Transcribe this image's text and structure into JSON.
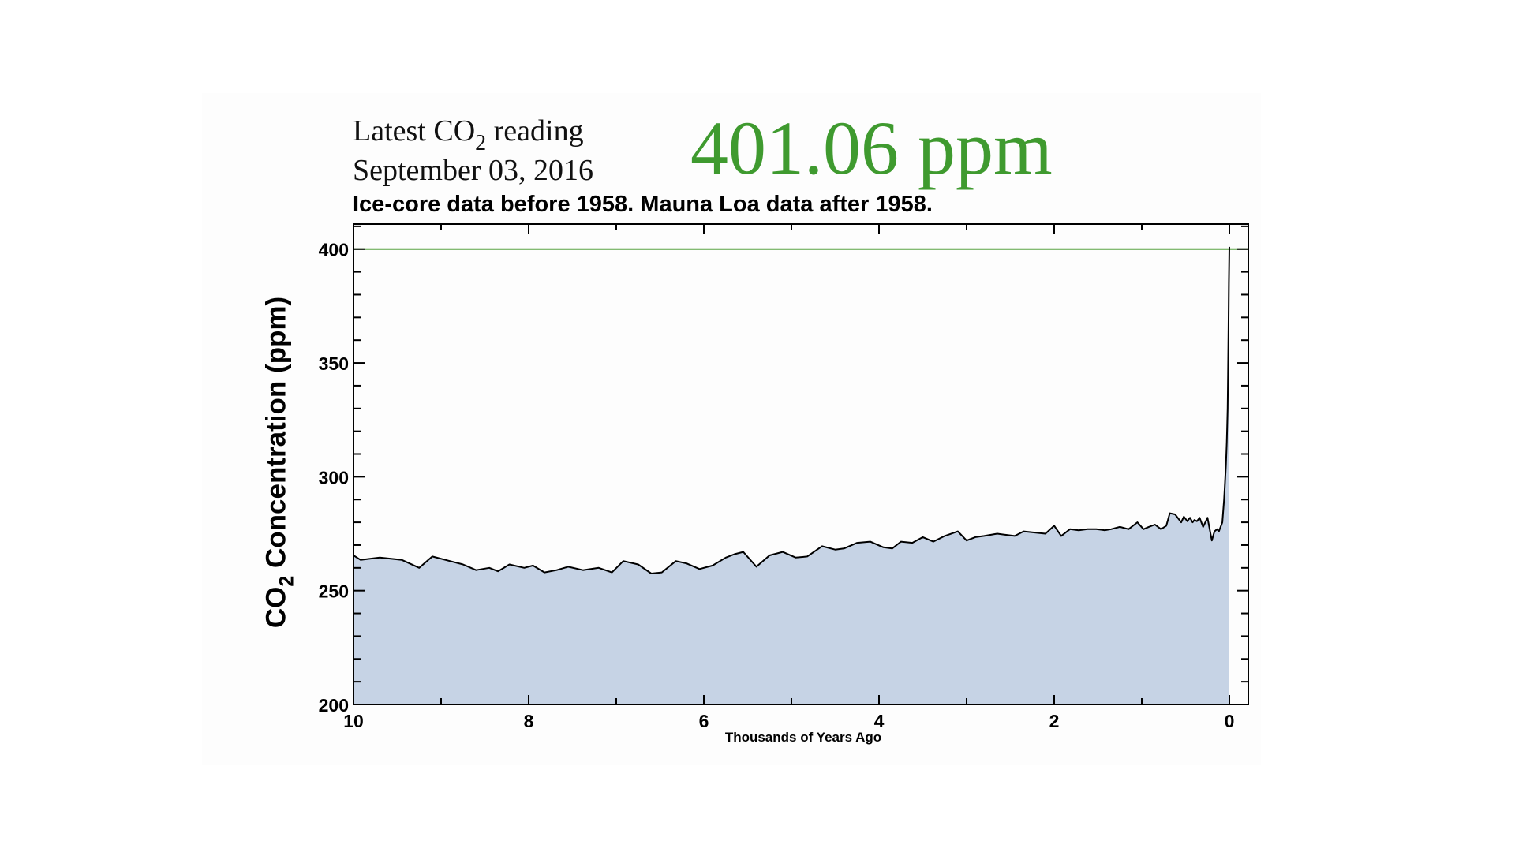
{
  "header": {
    "line1_pre": "Latest CO",
    "line1_sub": "2",
    "line1_post": " reading",
    "date": "September 03, 2016",
    "reading": "401.06 ppm",
    "reading_color": "#3f9a2f"
  },
  "chart_data": {
    "type": "area",
    "subtitle": "Ice-core data before 1958. Mauna Loa data after 1958.",
    "xlabel": "Thousands of Years Ago",
    "ylabel_pre": "CO",
    "ylabel_sub": "2",
    "ylabel_post": " Concentration (ppm)",
    "xlim": [
      10,
      0
    ],
    "ylim": [
      200,
      411
    ],
    "x_ticks": [
      "10",
      "8",
      "6",
      "4",
      "2",
      "0"
    ],
    "y_ticks": [
      "200",
      "250",
      "300",
      "350",
      "400"
    ],
    "reference_line": 400,
    "reference_color": "#5aa345",
    "fill_color": "#c6d3e5",
    "line_color": "#000000",
    "grid": false,
    "series": [
      {
        "x": [
          10.0,
          9.92,
          9.7,
          9.45,
          9.25,
          9.1,
          8.9,
          8.75,
          8.6,
          8.45,
          8.35,
          8.22,
          8.05,
          7.95,
          7.82,
          7.68,
          7.55,
          7.38,
          7.2,
          7.05,
          6.92,
          6.75,
          6.6,
          6.48,
          6.32,
          6.2,
          6.05,
          5.9,
          5.75,
          5.65,
          5.55,
          5.4,
          5.25,
          5.1,
          4.95,
          4.82,
          4.65,
          4.5,
          4.4,
          4.25,
          4.1,
          3.95,
          3.85,
          3.75,
          3.62,
          3.5,
          3.38,
          3.25,
          3.1,
          3.0,
          2.9,
          2.8,
          2.65,
          2.55,
          2.45,
          2.35,
          2.22,
          2.1,
          2.0,
          1.92,
          1.82,
          1.72,
          1.62,
          1.52,
          1.42,
          1.35,
          1.25,
          1.15,
          1.05,
          0.98,
          0.92,
          0.85,
          0.78,
          0.72,
          0.68,
          0.62,
          0.55,
          0.52,
          0.48,
          0.45,
          0.42,
          0.4,
          0.37,
          0.34,
          0.3,
          0.25,
          0.2,
          0.17,
          0.14,
          0.12,
          0.1,
          0.08,
          0.06,
          0.05,
          0.04,
          0.03,
          0.02,
          0.015,
          0.01,
          0.005,
          0.0
        ],
        "y": [
          265.5,
          263.5,
          264.5,
          263.5,
          260,
          265,
          263,
          261.5,
          259,
          260,
          258.5,
          261.5,
          260,
          261,
          258,
          259,
          260.5,
          259,
          260,
          258,
          263,
          261.5,
          257.5,
          258,
          263,
          262,
          259.5,
          261,
          264.5,
          266,
          267,
          260.5,
          265.5,
          267,
          264.5,
          265,
          269.5,
          268,
          268.5,
          271,
          271.5,
          269,
          268.5,
          271.5,
          271,
          273.5,
          271.5,
          274,
          276,
          272,
          273.5,
          274,
          275,
          274.5,
          274,
          276,
          275.5,
          275,
          278.5,
          274,
          277,
          276.5,
          277,
          277,
          276.5,
          277,
          278,
          277,
          280,
          277,
          278,
          279,
          277,
          278.5,
          284,
          283.5,
          280,
          282.5,
          280.5,
          282,
          280,
          281,
          280.5,
          282,
          278,
          282,
          272,
          276,
          277,
          276,
          278,
          280,
          290,
          297,
          305,
          315,
          330,
          345,
          365,
          385,
          401
        ]
      }
    ]
  }
}
